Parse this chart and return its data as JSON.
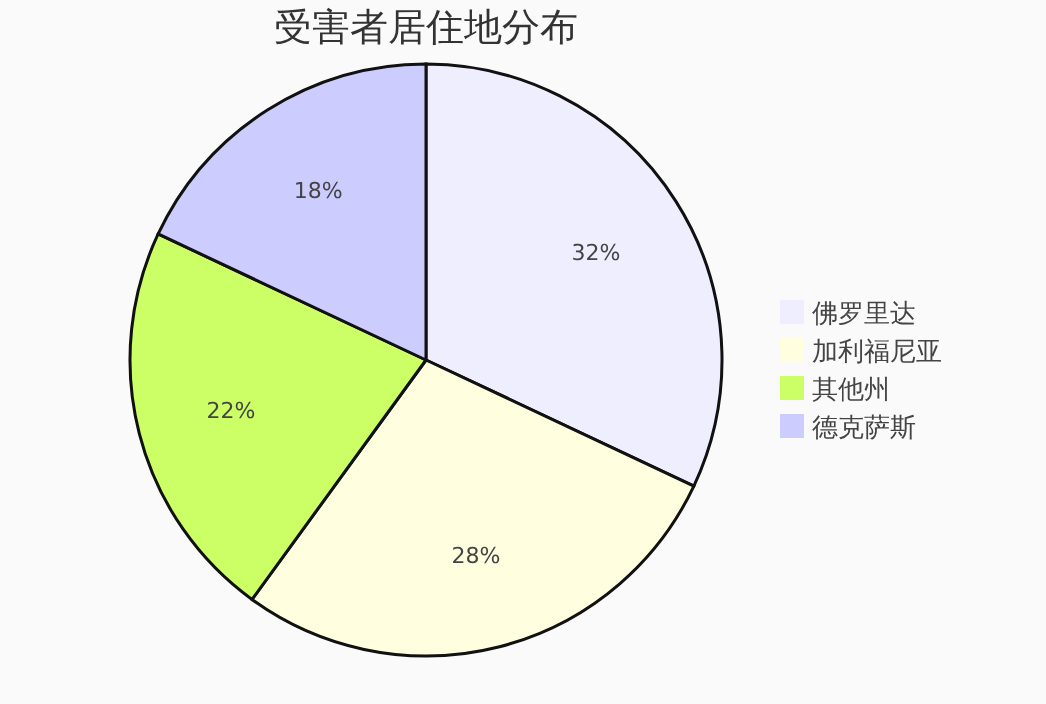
{
  "chart_data": {
    "type": "pie",
    "title": "受害者居住地分布",
    "categories": [
      "佛罗里达",
      "加利福尼亚",
      "其他州",
      "德克萨斯"
    ],
    "values": [
      32,
      28,
      22,
      18
    ],
    "value_labels": [
      "32%",
      "28%",
      "22%",
      "18%"
    ],
    "colors": [
      "#eeeeff",
      "#ffffe0",
      "#ccff66",
      "#ccccff"
    ],
    "legend": "right"
  }
}
